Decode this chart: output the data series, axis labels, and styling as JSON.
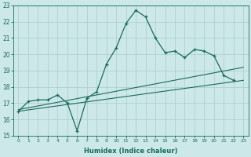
{
  "xlabel": "Humidex (Indice chaleur)",
  "x_values": [
    0,
    1,
    2,
    3,
    4,
    5,
    6,
    7,
    8,
    9,
    10,
    11,
    12,
    13,
    14,
    15,
    16,
    17,
    18,
    19,
    20,
    21,
    22,
    23
  ],
  "line1": [
    16.5,
    17.1,
    17.2,
    17.2,
    17.5,
    17.0,
    15.3,
    17.3,
    17.7,
    19.4,
    20.4,
    21.9,
    22.7,
    22.3,
    21.0,
    20.1,
    20.2,
    19.8,
    20.3,
    20.2,
    19.9,
    18.7,
    18.4,
    null
  ],
  "line2_x": [
    0,
    23
  ],
  "line2_y": [
    16.5,
    18.4
  ],
  "line3_x": [
    0,
    23
  ],
  "line3_y": [
    16.6,
    19.2
  ],
  "ylim": [
    15,
    23
  ],
  "xlim": [
    -0.5,
    23.5
  ],
  "yticks": [
    15,
    16,
    17,
    18,
    19,
    20,
    21,
    22,
    23
  ],
  "xticks": [
    0,
    1,
    2,
    3,
    4,
    5,
    6,
    7,
    8,
    9,
    10,
    11,
    12,
    13,
    14,
    15,
    16,
    17,
    18,
    19,
    20,
    21,
    22,
    23
  ],
  "line_color": "#1a6b5e",
  "bg_color": "#cce8e8",
  "grid_color": "#aacccc"
}
